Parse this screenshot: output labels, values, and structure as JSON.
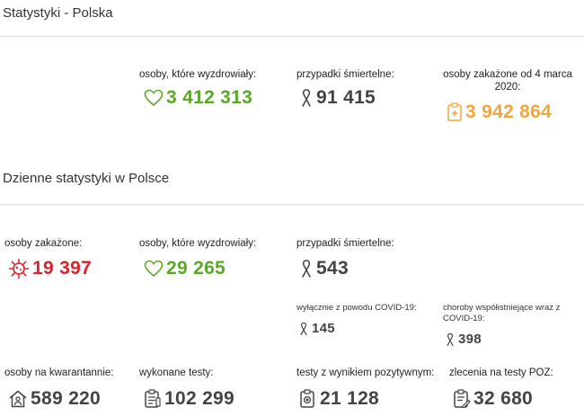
{
  "colors": {
    "green": "#5aa829",
    "red": "#d8232a",
    "orange": "#f2a63a",
    "dark": "#444444",
    "divider": "#dcdcdc"
  },
  "summary": {
    "title": "Statystyki - Polska",
    "recovered": {
      "label": "osoby, które wyzdrowiały:",
      "value": "3 412 313",
      "icon": "heart-icon"
    },
    "deaths": {
      "label": "przypadki śmiertelne:",
      "value": "91 415",
      "icon": "ribbon-icon"
    },
    "infected_total": {
      "label": "osoby zakażone od 4 marca 2020:",
      "value": "3 942 864",
      "icon": "medical-clipboard-icon"
    }
  },
  "daily": {
    "title": "Dzienne statystyki w Polsce",
    "infected": {
      "label": "osoby zakażone:",
      "value": "19 397",
      "icon": "virus-icon"
    },
    "recovered": {
      "label": "osoby, które wyzdrowiały:",
      "value": "29 265",
      "icon": "heart-icon"
    },
    "deaths": {
      "label": "przypadki śmiertelne:",
      "value": "543",
      "icon": "ribbon-icon"
    },
    "deaths_covid_only": {
      "label": "wyłącznie z powodu COVID-19:",
      "value": "145",
      "icon": "ribbon-icon"
    },
    "deaths_comorbid": {
      "label": "choroby współistniejące wraz z COVID-19:",
      "value": "398",
      "icon": "ribbon-icon"
    },
    "quarantine": {
      "label": "osoby na kwarantannie:",
      "value": "589 220",
      "icon": "house-person-icon"
    },
    "tests": {
      "label": "wykonane testy:",
      "value": "102 299",
      "icon": "test-clipboard-icon"
    },
    "positive_tests": {
      "label": "testy z wynikiem pozytywnym:",
      "value": "21 128",
      "icon": "positive-test-icon"
    },
    "poz_orders": {
      "label": "zlecenia na testy POZ:",
      "value": "32 680",
      "icon": "order-clipboard-icon"
    }
  }
}
